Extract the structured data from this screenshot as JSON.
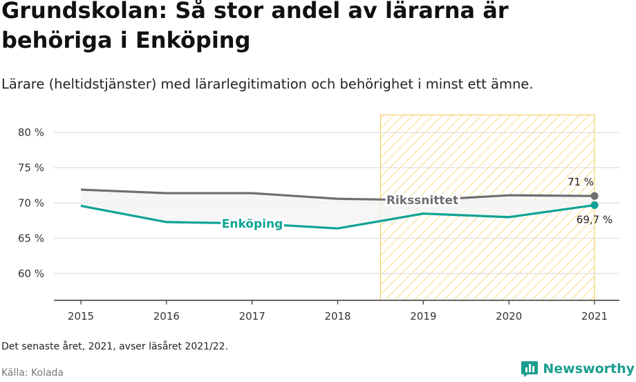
{
  "header": {
    "title": "Grundskolan: Så stor andel av lärarna är behöriga i Enköping",
    "subtitle": "Lärare (heltidstjänster) med lärarlegitimation och behörighet i minst ett ämne."
  },
  "footer": {
    "note": "Det senaste året, 2021, avser läsåret 2021/22.",
    "source": "Källa: Kolada",
    "brand": "Newsworthy"
  },
  "colors": {
    "enkoping": "#0ea394",
    "riket": "#6f6e73",
    "highlight": "#f2c744",
    "grid": "#dddddd",
    "brand": "#1a9e8f"
  },
  "icons": {
    "brand_logo": "bar-chart-icon"
  },
  "chart_data": {
    "type": "line",
    "x": [
      "2015",
      "2016",
      "2017",
      "2018",
      "2019",
      "2020",
      "2021"
    ],
    "yticks": [
      60,
      65,
      70,
      75,
      80
    ],
    "ytick_labels": [
      "60 %",
      "65 %",
      "70 %",
      "75 %",
      "80 %"
    ],
    "ylim": [
      56.2,
      82.5
    ],
    "grid": true,
    "highlight_range": [
      "2018.5",
      "2021"
    ],
    "series": [
      {
        "name": "Rikssnittet",
        "values": [
          71.9,
          71.4,
          71.4,
          70.6,
          70.4,
          71.1,
          71.0
        ],
        "end_label": "71 %"
      },
      {
        "name": "Enköping",
        "values": [
          69.6,
          67.3,
          67.1,
          66.4,
          68.5,
          68.0,
          69.7
        ],
        "end_label": "69,7 %"
      }
    ]
  }
}
